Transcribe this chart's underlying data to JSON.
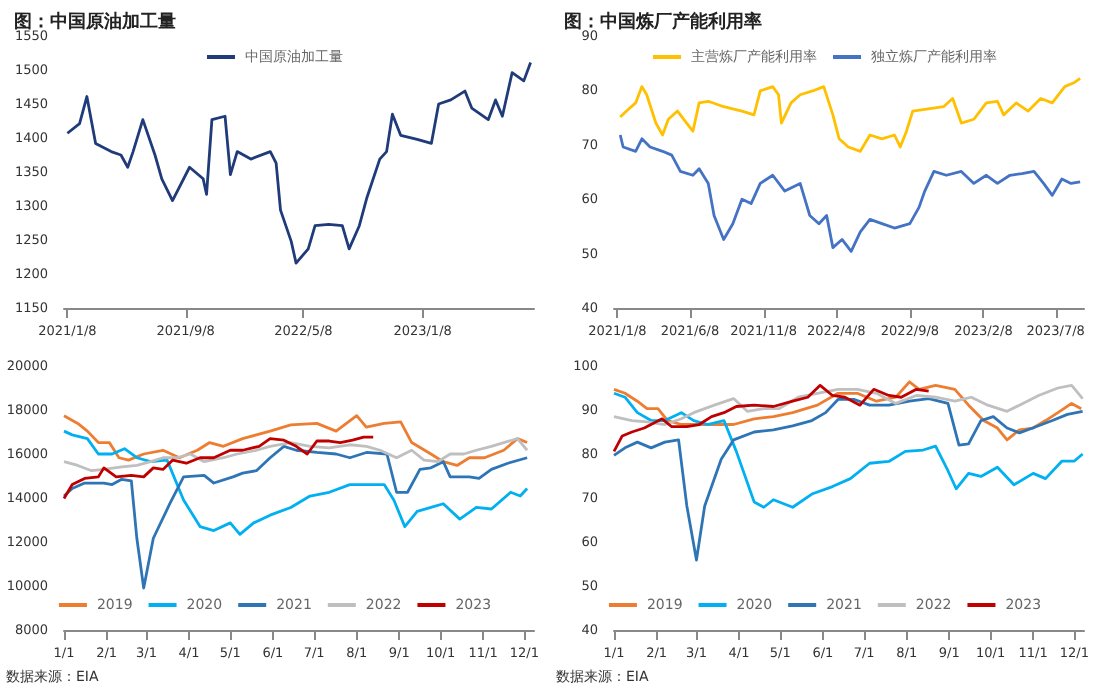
{
  "chart_data": [
    {
      "type": "line",
      "title": "图：中国原油加工量",
      "legend": "top",
      "ylim": [
        1150,
        1550
      ],
      "yticks": [
        1150,
        1200,
        1250,
        1300,
        1350,
        1400,
        1450,
        1500,
        1550
      ],
      "xlim": [
        "2021-01-01",
        "2023-08-25"
      ],
      "xticks": [
        {
          "value": "2021-01-08",
          "label": "2021/1/8"
        },
        {
          "value": "2021-09-08",
          "label": "2021/9/8"
        },
        {
          "value": "2022-05-08",
          "label": "2022/5/8"
        },
        {
          "value": "2023-01-08",
          "label": "2023/1/8"
        }
      ],
      "series": [
        {
          "name": "中国原油加工量",
          "color": "#1f3b7a",
          "x": [
            "2021-01-08",
            "2021-02-02",
            "2021-02-17",
            "2021-03-07",
            "2021-04-08",
            "2021-04-28",
            "2021-05-12",
            "2021-05-23",
            "2021-06-12",
            "2021-07-07",
            "2021-07-21",
            "2021-08-12",
            "2021-09-16",
            "2021-10-14",
            "2021-10-21",
            "2021-11-01",
            "2021-11-28",
            "2021-12-09",
            "2021-12-23",
            "2022-01-20",
            "2022-03-01",
            "2022-03-13",
            "2022-03-22",
            "2022-04-13",
            "2022-04-23",
            "2022-05-18",
            "2022-06-01",
            "2022-06-29",
            "2022-07-27",
            "2022-08-10",
            "2022-08-31",
            "2022-09-15",
            "2022-10-12",
            "2022-10-26",
            "2022-11-07",
            "2022-11-24",
            "2022-12-28",
            "2023-01-26",
            "2023-02-10",
            "2023-03-07",
            "2023-04-05",
            "2023-04-19",
            "2023-05-23",
            "2023-06-07",
            "2023-06-21",
            "2023-07-11",
            "2023-08-04",
            "2023-08-18"
          ],
          "values": [
            1407,
            1421,
            1461,
            1392,
            1380,
            1375,
            1357,
            1380,
            1427,
            1375,
            1340,
            1308,
            1357,
            1340,
            1317,
            1427,
            1432,
            1346,
            1380,
            1369,
            1380,
            1363,
            1294,
            1248,
            1216,
            1237,
            1271,
            1273,
            1271,
            1237,
            1271,
            1311,
            1369,
            1380,
            1435,
            1404,
            1398,
            1392,
            1450,
            1456,
            1469,
            1444,
            1427,
            1456,
            1432,
            1496,
            1484,
            1511
          ]
        }
      ]
    },
    {
      "type": "line",
      "title": "图：中国炼厂产能利用率",
      "legend": "top",
      "ylim": [
        40,
        90
      ],
      "yticks": [
        40,
        50,
        60,
        70,
        80,
        90
      ],
      "xlim": [
        "2021-01-01",
        "2023-09-05"
      ],
      "xticks": [
        {
          "value": "2021-01-08",
          "label": "2021/1/8"
        },
        {
          "value": "2021-06-08",
          "label": "2021/6/8"
        },
        {
          "value": "2021-11-08",
          "label": "2021/11/8"
        },
        {
          "value": "2022-04-08",
          "label": "2022/4/8"
        },
        {
          "value": "2022-09-08",
          "label": "2022/9/8"
        },
        {
          "value": "2023-02-08",
          "label": "2023/2/8"
        },
        {
          "value": "2023-07-08",
          "label": "2023/7/8"
        }
      ],
      "series": [
        {
          "name": "主营炼厂产能利用率",
          "color": "#ffc000",
          "x": [
            "2021-01-14",
            "2021-01-27",
            "2021-02-15",
            "2021-02-28",
            "2021-03-10",
            "2021-03-29",
            "2021-04-12",
            "2021-04-24",
            "2021-05-13",
            "2021-06-01",
            "2021-06-14",
            "2021-06-27",
            "2021-07-16",
            "2021-08-17",
            "2021-09-24",
            "2021-10-19",
            "2021-11-01",
            "2021-11-27",
            "2021-12-09",
            "2021-12-15",
            "2022-01-04",
            "2022-01-23",
            "2022-02-18",
            "2022-03-13",
            "2022-04-01",
            "2022-04-14",
            "2022-05-03",
            "2022-05-28",
            "2022-06-17",
            "2022-07-12",
            "2022-08-07",
            "2022-08-19",
            "2022-09-01",
            "2022-09-14",
            "2022-10-09",
            "2022-11-17",
            "2022-12-06",
            "2022-12-24",
            "2023-01-19",
            "2023-02-14",
            "2023-03-09",
            "2023-03-22",
            "2023-04-17",
            "2023-05-12",
            "2023-06-07",
            "2023-07-01",
            "2023-07-27",
            "2023-08-15",
            "2023-08-28"
          ],
          "values": [
            75.1,
            76.2,
            77.7,
            80.7,
            79.2,
            74.0,
            71.8,
            74.7,
            76.2,
            74.0,
            72.5,
            77.7,
            78.0,
            77.0,
            76.2,
            75.5,
            79.9,
            80.7,
            79.2,
            74.0,
            77.7,
            79.2,
            79.9,
            80.7,
            75.5,
            71.1,
            69.6,
            68.8,
            71.8,
            71.1,
            71.8,
            69.6,
            72.5,
            76.2,
            76.5,
            77.0,
            78.5,
            74.0,
            74.7,
            77.7,
            78.0,
            75.5,
            77.7,
            76.2,
            78.5,
            77.7,
            80.7,
            81.4,
            82.2
          ]
        },
        {
          "name": "独立炼厂产能利用率",
          "color": "#4472c4",
          "x": [
            "2021-01-14",
            "2021-01-20",
            "2021-02-15",
            "2021-02-28",
            "2021-03-17",
            "2021-04-12",
            "2021-05-01",
            "2021-05-19",
            "2021-06-14",
            "2021-06-27",
            "2021-07-16",
            "2021-07-28",
            "2021-08-17",
            "2021-09-05",
            "2021-09-24",
            "2021-10-13",
            "2021-11-01",
            "2021-11-27",
            "2021-12-22",
            "2022-01-23",
            "2022-02-12",
            "2022-03-03",
            "2022-03-19",
            "2022-04-01",
            "2022-04-20",
            "2022-05-09",
            "2022-05-28",
            "2022-06-17",
            "2022-07-12",
            "2022-08-07",
            "2022-09-08",
            "2022-09-27",
            "2022-10-09",
            "2022-10-28",
            "2022-11-23",
            "2022-12-24",
            "2023-01-19",
            "2023-02-14",
            "2023-03-09",
            "2023-04-04",
            "2023-04-29",
            "2023-05-24",
            "2023-06-13",
            "2023-07-01",
            "2023-07-21",
            "2023-08-09",
            "2023-08-28"
          ],
          "values": [
            71.8,
            69.6,
            68.8,
            71.1,
            69.6,
            68.8,
            68.1,
            65.1,
            64.4,
            65.6,
            62.9,
            57.0,
            52.6,
            55.5,
            60.0,
            59.2,
            62.9,
            64.4,
            61.5,
            62.9,
            57.0,
            55.5,
            57.0,
            51.1,
            52.6,
            50.4,
            54.0,
            56.3,
            55.5,
            54.7,
            55.5,
            58.5,
            61.5,
            65.1,
            64.4,
            65.1,
            62.9,
            64.4,
            62.9,
            64.4,
            64.7,
            65.1,
            62.9,
            60.7,
            63.7,
            62.9,
            63.2
          ]
        }
      ]
    },
    {
      "type": "line",
      "legend": "bottom",
      "annotations": [
        "数据来源：EIA"
      ],
      "ylim": [
        8000,
        20000
      ],
      "yticks": [
        8000,
        10000,
        12000,
        14000,
        16000,
        18000,
        20000
      ],
      "xlim": [
        "--01-01",
        "--12-08"
      ],
      "xticks": [
        {
          "value": "--01-01",
          "label": "1/1"
        },
        {
          "value": "--02-01",
          "label": "2/1"
        },
        {
          "value": "--03-01",
          "label": "3/1"
        },
        {
          "value": "--04-01",
          "label": "4/1"
        },
        {
          "value": "--05-01",
          "label": "5/1"
        },
        {
          "value": "--06-01",
          "label": "6/1"
        },
        {
          "value": "--07-01",
          "label": "7/1"
        },
        {
          "value": "--08-01",
          "label": "8/1"
        },
        {
          "value": "--09-01",
          "label": "9/1"
        },
        {
          "value": "--10-01",
          "label": "10/1"
        },
        {
          "value": "--11-01",
          "label": "11/1"
        },
        {
          "value": "--12-01",
          "label": "12/1"
        }
      ],
      "series": [
        {
          "name": "2019",
          "color": "#ed7d31",
          "x": [
            "--01-01",
            "--01-11",
            "--01-18",
            "--01-26",
            "--02-03",
            "--02-10",
            "--02-17",
            "--02-28",
            "--03-13",
            "--03-25",
            "--04-07",
            "--04-16",
            "--04-26",
            "--05-10",
            "--05-30",
            "--06-14",
            "--07-03",
            "--07-17",
            "--08-01",
            "--08-08",
            "--08-21",
            "--09-02",
            "--09-10",
            "--09-24",
            "--10-03",
            "--10-13",
            "--10-22",
            "--11-02",
            "--11-16",
            "--11-26",
            "--12-03"
          ],
          "values": [
            17740,
            17390,
            17040,
            16520,
            16520,
            15830,
            15720,
            16000,
            16170,
            15830,
            16170,
            16520,
            16350,
            16700,
            17040,
            17320,
            17390,
            17040,
            17740,
            17220,
            17390,
            17460,
            16520,
            16000,
            15650,
            15480,
            15830,
            15830,
            16170,
            16700,
            16520
          ]
        },
        {
          "name": "2020",
          "color": "#00b0f0",
          "x": [
            "--01-01",
            "--01-07",
            "--01-18",
            "--01-26",
            "--02-05",
            "--02-14",
            "--02-23",
            "--03-04",
            "--03-16",
            "--03-28",
            "--04-09",
            "--04-19",
            "--05-01",
            "--05-08",
            "--05-18",
            "--05-30",
            "--06-14",
            "--06-28",
            "--07-12",
            "--07-27",
            "--08-08",
            "--08-21",
            "--08-28",
            "--09-05",
            "--09-14",
            "--09-24",
            "--10-03",
            "--10-15",
            "--10-27",
            "--11-07",
            "--11-21",
            "--11-28",
            "--12-03"
          ],
          "values": [
            17040,
            16870,
            16700,
            16000,
            16000,
            16240,
            15830,
            15650,
            15720,
            13910,
            12700,
            12520,
            12870,
            12350,
            12870,
            13220,
            13570,
            14090,
            14260,
            14610,
            14610,
            14610,
            13910,
            12700,
            13390,
            13570,
            13740,
            13040,
            13570,
            13500,
            14260,
            14090,
            14430
          ]
        },
        {
          "name": "2021",
          "color": "#2e75b6",
          "x": [
            "--01-01",
            "--01-07",
            "--01-16",
            "--01-30",
            "--02-05",
            "--02-12",
            "--02-19",
            "--02-23",
            "--02-28",
            "--03-06",
            "--03-18",
            "--03-28",
            "--04-12",
            "--04-19",
            "--05-03",
            "--05-10",
            "--05-20",
            "--05-30",
            "--06-09",
            "--06-18",
            "--07-03",
            "--07-17",
            "--07-27",
            "--08-08",
            "--08-23",
            "--08-30",
            "--09-07",
            "--09-16",
            "--09-24",
            "--10-03",
            "--10-08",
            "--10-22",
            "--10-29",
            "--11-07",
            "--11-19",
            "--12-03"
          ],
          "values": [
            14090,
            14430,
            14680,
            14680,
            14610,
            14850,
            14780,
            12170,
            9910,
            12170,
            13740,
            14960,
            15030,
            14680,
            14960,
            15130,
            15240,
            15830,
            16350,
            16170,
            16070,
            16000,
            15830,
            16070,
            16000,
            14260,
            14260,
            15300,
            15370,
            15650,
            14960,
            14960,
            14890,
            15300,
            15580,
            15830
          ]
        },
        {
          "name": "2022",
          "color": "#bfbfbf",
          "x": [
            "--01-01",
            "--01-11",
            "--01-21",
            "--01-30",
            "--02-12",
            "--02-23",
            "--03-04",
            "--03-13",
            "--03-23",
            "--04-02",
            "--04-12",
            "--04-26",
            "--05-06",
            "--05-20",
            "--05-30",
            "--06-14",
            "--06-28",
            "--07-12",
            "--07-27",
            "--08-08",
            "--08-18",
            "--08-30",
            "--09-10",
            "--09-19",
            "--09-29",
            "--10-08",
            "--10-18",
            "--10-27",
            "--11-07",
            "--11-16",
            "--11-26",
            "--12-03"
          ],
          "values": [
            15650,
            15480,
            15240,
            15300,
            15410,
            15480,
            15650,
            15830,
            15830,
            16000,
            15650,
            15830,
            16000,
            16170,
            16350,
            16520,
            16350,
            16280,
            16420,
            16350,
            16170,
            15830,
            16170,
            15720,
            15650,
            16000,
            16000,
            16170,
            16350,
            16520,
            16700,
            16170
          ]
        },
        {
          "name": "2023",
          "color": "#c00000",
          "x": [
            "--01-01",
            "--01-07",
            "--01-16",
            "--01-26",
            "--01-30",
            "--02-08",
            "--02-19",
            "--02-28",
            "--03-06",
            "--03-13",
            "--03-20",
            "--03-30",
            "--04-09",
            "--04-19",
            "--05-01",
            "--05-10",
            "--05-22",
            "--05-30",
            "--06-09",
            "--06-18",
            "--06-26",
            "--07-03",
            "--07-12",
            "--07-20",
            "--07-29",
            "--08-06",
            "--08-13"
          ],
          "values": [
            13980,
            14610,
            14890,
            14960,
            15370,
            14960,
            15030,
            14960,
            15370,
            15300,
            15720,
            15580,
            15830,
            15830,
            16170,
            16170,
            16350,
            16700,
            16630,
            16350,
            16000,
            16590,
            16590,
            16520,
            16630,
            16770,
            16770
          ]
        }
      ]
    },
    {
      "type": "line",
      "legend": "bottom",
      "annotations": [
        "数据来源：EIA"
      ],
      "ylim": [
        40,
        100
      ],
      "yticks": [
        40,
        50,
        60,
        70,
        80,
        90,
        100
      ],
      "xlim": [
        "--01-01",
        "--12-08"
      ],
      "xticks": [
        {
          "value": "--01-01",
          "label": "1/1"
        },
        {
          "value": "--02-01",
          "label": "2/1"
        },
        {
          "value": "--03-01",
          "label": "3/1"
        },
        {
          "value": "--04-01",
          "label": "4/1"
        },
        {
          "value": "--05-01",
          "label": "5/1"
        },
        {
          "value": "--06-01",
          "label": "6/1"
        },
        {
          "value": "--07-01",
          "label": "7/1"
        },
        {
          "value": "--08-01",
          "label": "8/1"
        },
        {
          "value": "--09-01",
          "label": "9/1"
        },
        {
          "value": "--10-01",
          "label": "10/1"
        },
        {
          "value": "--11-01",
          "label": "11/1"
        },
        {
          "value": "--12-01",
          "label": "12/1"
        }
      ],
      "series": [
        {
          "name": "2019",
          "color": "#ed7d31",
          "x": [
            "--01-01",
            "--01-09",
            "--01-18",
            "--01-25",
            "--02-02",
            "--02-09",
            "--02-19",
            "--02-28",
            "--03-14",
            "--03-28",
            "--04-12",
            "--04-26",
            "--05-10",
            "--05-28",
            "--06-12",
            "--06-26",
            "--07-10",
            "--07-24",
            "--08-03",
            "--08-10",
            "--08-22",
            "--09-05",
            "--09-15",
            "--09-26",
            "--10-06",
            "--10-13",
            "--10-22",
            "--11-01",
            "--11-10",
            "--11-19",
            "--11-29",
            "--12-06"
          ],
          "values": [
            94.7,
            93.8,
            92.0,
            90.3,
            90.3,
            87.6,
            86.7,
            86.7,
            86.7,
            86.7,
            88.0,
            88.5,
            89.4,
            91.1,
            93.8,
            93.8,
            92.0,
            92.9,
            96.4,
            94.7,
            95.6,
            94.7,
            91.1,
            87.6,
            85.9,
            83.2,
            85.5,
            85.9,
            87.6,
            89.4,
            91.5,
            90.3
          ]
        },
        {
          "name": "2020",
          "color": "#00b0f0",
          "x": [
            "--01-01",
            "--01-09",
            "--01-18",
            "--01-28",
            "--02-07",
            "--02-19",
            "--02-28",
            "--03-09",
            "--03-21",
            "--03-30",
            "--04-12",
            "--04-19",
            "--04-26",
            "--05-10",
            "--05-24",
            "--06-08",
            "--06-21",
            "--07-05",
            "--07-19",
            "--07-31",
            "--08-13",
            "--08-22",
            "--08-31",
            "--09-06",
            "--09-15",
            "--09-24",
            "--10-06",
            "--10-18",
            "--11-01",
            "--11-10",
            "--11-22",
            "--12-01",
            "--12-07"
          ],
          "values": [
            93.8,
            92.9,
            89.4,
            87.6,
            87.6,
            89.4,
            87.6,
            86.7,
            87.6,
            80.6,
            69.1,
            67.9,
            69.6,
            67.9,
            70.9,
            72.6,
            74.4,
            77.9,
            78.3,
            80.6,
            80.9,
            81.8,
            76.2,
            72.1,
            75.6,
            74.9,
            77.0,
            73.0,
            75.6,
            74.4,
            78.4,
            78.4,
            80.0
          ]
        },
        {
          "name": "2021",
          "color": "#2e75b6",
          "x": [
            "--01-01",
            "--01-09",
            "--01-18",
            "--01-28",
            "--02-07",
            "--02-17",
            "--02-23",
            "--03-01",
            "--03-07",
            "--03-19",
            "--03-28",
            "--04-12",
            "--04-26",
            "--05-10",
            "--05-24",
            "--06-03",
            "--06-12",
            "--06-24",
            "--07-05",
            "--07-19",
            "--08-03",
            "--08-17",
            "--08-31",
            "--09-08",
            "--09-15",
            "--09-24",
            "--10-03",
            "--10-13",
            "--10-22",
            "--11-03",
            "--11-15",
            "--11-26",
            "--12-07"
          ],
          "values": [
            79.7,
            81.4,
            82.7,
            81.4,
            82.7,
            83.2,
            68.2,
            55.9,
            68.2,
            78.8,
            83.2,
            85.0,
            85.5,
            86.4,
            87.6,
            89.4,
            92.4,
            92.4,
            91.1,
            91.1,
            92.0,
            92.6,
            91.5,
            82.0,
            82.3,
            87.6,
            88.5,
            85.9,
            84.8,
            86.2,
            87.6,
            89.0,
            89.7
          ]
        },
        {
          "name": "2022",
          "color": "#bfbfbf",
          "x": [
            "--01-01",
            "--01-14",
            "--01-25",
            "--02-07",
            "--02-19",
            "--02-28",
            "--03-14",
            "--03-28",
            "--04-07",
            "--04-19",
            "--04-30",
            "--05-14",
            "--05-28",
            "--06-12",
            "--06-26",
            "--07-10",
            "--07-24",
            "--08-08",
            "--08-22",
            "--09-05",
            "--09-17",
            "--09-29",
            "--10-13",
            "--10-22",
            "--11-05",
            "--11-19",
            "--11-29",
            "--12-07"
          ],
          "values": [
            88.5,
            87.6,
            87.3,
            86.7,
            88.0,
            89.4,
            91.1,
            92.6,
            89.7,
            90.3,
            90.3,
            92.9,
            93.8,
            94.7,
            94.7,
            93.8,
            91.5,
            93.3,
            92.9,
            92.0,
            92.9,
            91.1,
            89.7,
            91.1,
            93.3,
            95.0,
            95.6,
            92.6
          ]
        },
        {
          "name": "2023",
          "color": "#c00000",
          "x": [
            "--01-01",
            "--01-07",
            "--01-14",
            "--01-23",
            "--02-05",
            "--02-12",
            "--02-23",
            "--03-03",
            "--03-12",
            "--03-21",
            "--03-30",
            "--04-12",
            "--04-26",
            "--05-10",
            "--05-21",
            "--05-30",
            "--06-08",
            "--06-17",
            "--06-28",
            "--07-08",
            "--07-19",
            "--07-28",
            "--08-08",
            "--08-17"
          ],
          "values": [
            80.6,
            84.1,
            85.0,
            85.9,
            88.0,
            86.2,
            86.2,
            86.7,
            88.5,
            89.4,
            90.8,
            91.1,
            90.8,
            92.0,
            92.9,
            95.6,
            93.3,
            92.9,
            91.1,
            94.7,
            93.3,
            92.9,
            94.7,
            94.3
          ]
        }
      ]
    }
  ]
}
